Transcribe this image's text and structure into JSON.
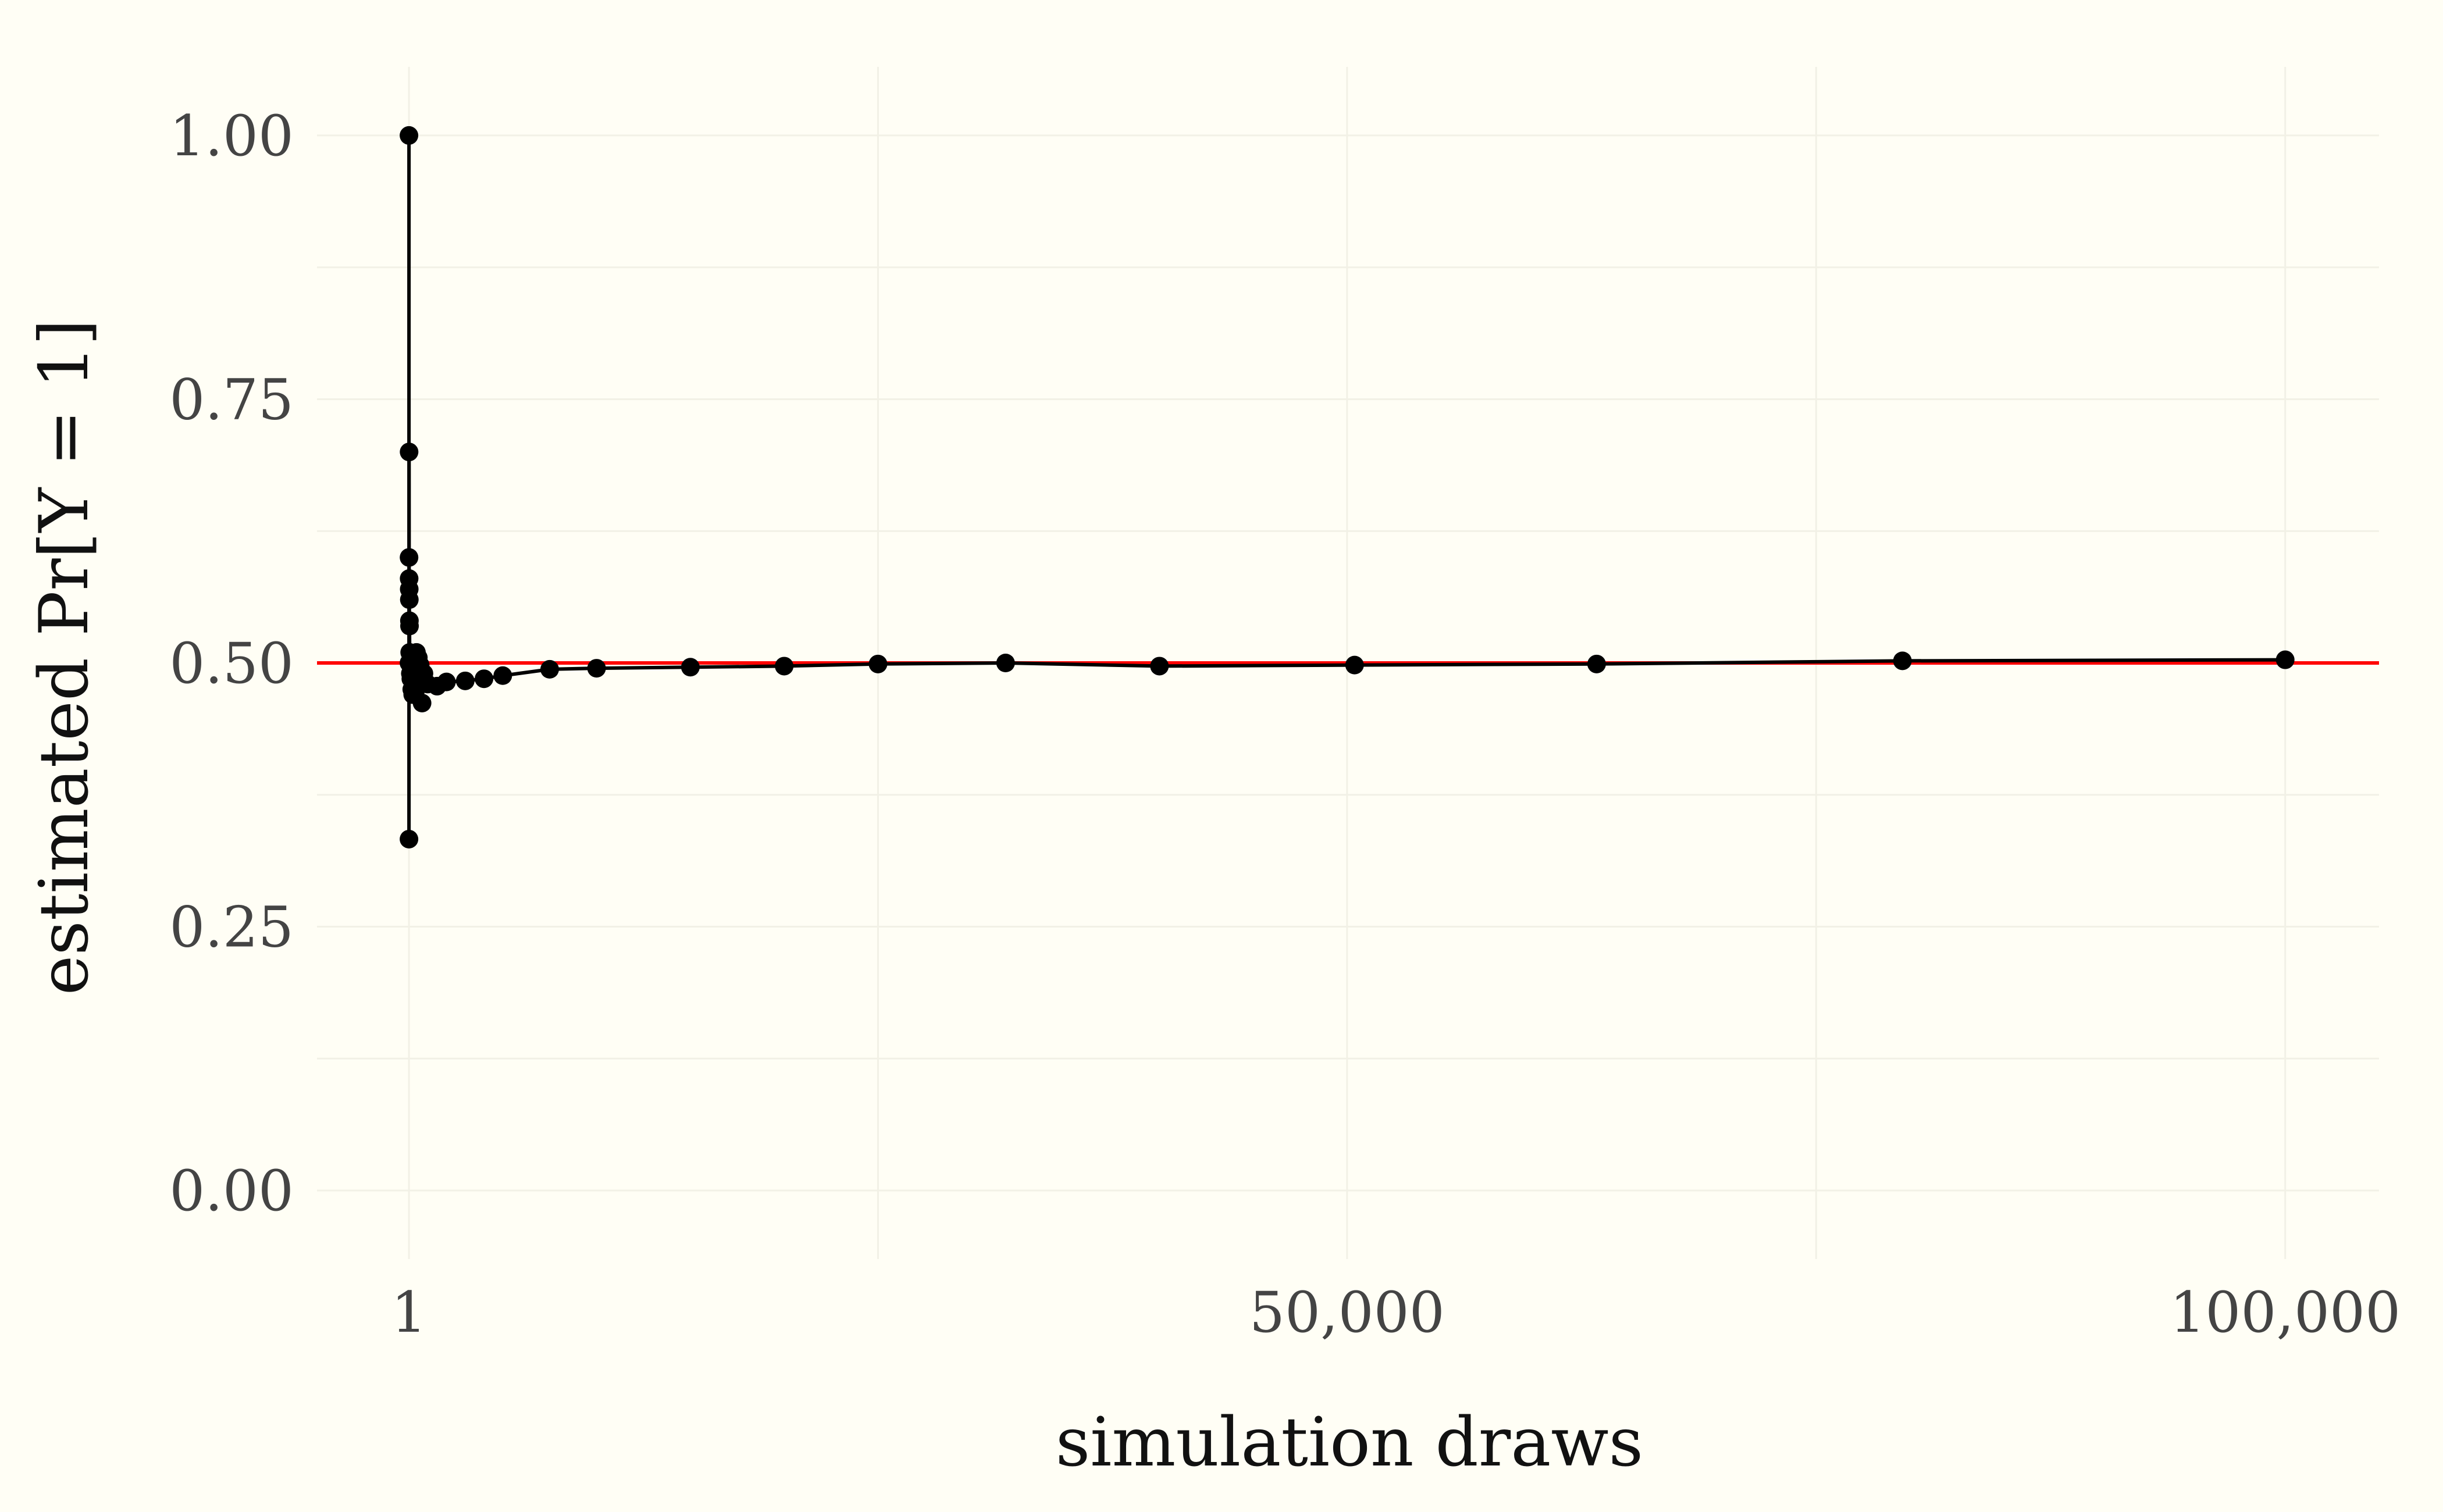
{
  "chart_data": {
    "type": "line",
    "title": "",
    "xlabel": "simulation draws",
    "ylabel": "estimated Pr[Y = 1]",
    "xlim": [
      -4900,
      105000
    ],
    "ylim": [
      -0.065,
      1.065
    ],
    "x_ticks": [
      1,
      50000,
      100000
    ],
    "x_tick_labels": [
      "1",
      "50,000",
      "100,000"
    ],
    "y_ticks": [
      0,
      0.25,
      0.5,
      0.75,
      1
    ],
    "y_tick_labels": [
      "0.00",
      "0.25",
      "0.50",
      "0.75",
      "1.00"
    ],
    "grid": true,
    "reference_line": {
      "y": 0.5,
      "color": "#ff0000"
    },
    "line_color": "#000000",
    "point_color": "#000000",
    "background_color": "#fffef5",
    "series": [
      {
        "x": [
          1,
          2,
          3,
          5,
          8,
          10,
          15,
          20,
          25,
          30,
          40,
          50,
          75,
          100,
          150,
          200,
          250,
          300,
          400,
          500,
          600,
          700,
          800,
          1000,
          1500,
          2000,
          3000,
          4000,
          5000,
          7500,
          10000,
          15000,
          20000,
          25000,
          31800,
          40000,
          50400,
          63300,
          79600,
          100000
        ],
        "y": [
          1.0,
          0.333,
          0.5,
          0.6,
          0.7,
          0.58,
          0.57,
          0.56,
          0.54,
          0.535,
          0.51,
          0.5,
          0.49,
          0.485,
          0.475,
          0.47,
          0.48,
          0.488,
          0.51,
          0.505,
          0.498,
          0.462,
          0.49,
          0.48,
          0.478,
          0.482,
          0.483,
          0.485,
          0.488,
          0.494,
          0.495,
          0.496,
          0.497,
          0.499,
          0.5,
          0.497,
          0.498,
          0.499,
          0.502,
          0.503
        ]
      }
    ]
  }
}
